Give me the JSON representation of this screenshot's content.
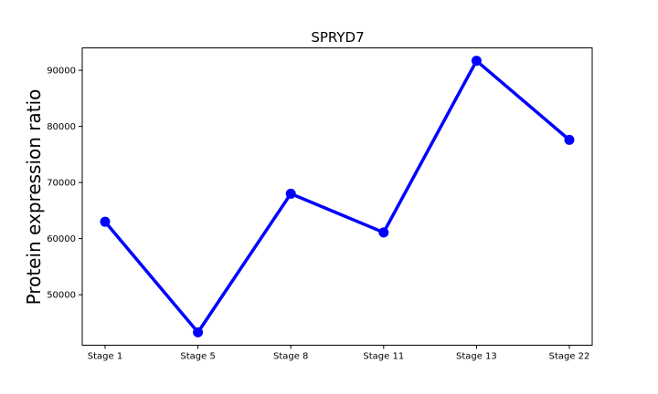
{
  "chart_data": {
    "type": "line",
    "title": "SPRYD7",
    "xlabel": "",
    "ylabel": "Protein expression ratio",
    "categories": [
      "Stage 1",
      "Stage 5",
      "Stage 8",
      "Stage 11",
      "Stage 13",
      "Stage 22"
    ],
    "series": [
      {
        "values": [
          63000,
          43300,
          68000,
          61100,
          91700,
          77600
        ]
      }
    ],
    "yticks": [
      50000,
      60000,
      70000,
      80000,
      90000
    ],
    "ytick_labels": [
      "50000",
      "60000",
      "70000",
      "80000",
      "90000"
    ],
    "ylim": [
      41000,
      94000
    ],
    "grid": false,
    "line_color": "#0000ff",
    "marker_color": "#0000ff"
  }
}
